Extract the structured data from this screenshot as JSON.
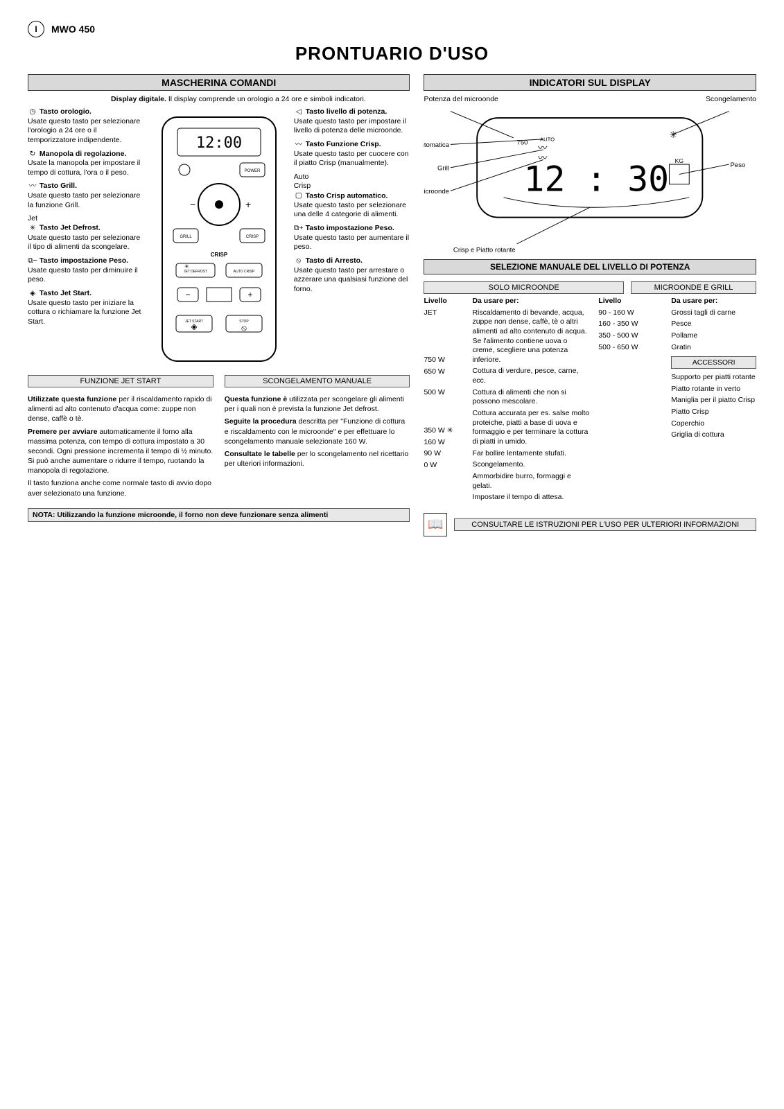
{
  "header": {
    "lang_code": "I",
    "model": "MWO 450",
    "title": "PRONTUARIO D'USO"
  },
  "left": {
    "section_title": "MASCHERINA COMANDI",
    "intro_bold": "Display digitale.",
    "intro_text": "Il display comprende un orologio a 24 ore e simboli indicatori.",
    "legend_left": [
      {
        "b": "Tasto orologio.",
        "t": "Usate questo tasto per selezionare l'orologio a 24 ore o il temporizzatore indipendente."
      },
      {
        "b": "Manopola di regolazione.",
        "t": "Usate la manopola per impostare il tempo di cottura, l'ora o il peso."
      },
      {
        "b": "Tasto Grill.",
        "t": "Usate questo tasto per selezionare la funzione Grill."
      },
      {
        "b": "Tasto Jet Defrost.",
        "t": "Usate questo tasto per selezionare il tipo di alimenti da scongelare."
      },
      {
        "b": "Tasto impostazione Peso.",
        "t": "Usate questo tasto per diminuire il peso."
      },
      {
        "b": "Tasto Jet Start.",
        "t": "Usate questo tasto per iniziare la cottura o richiamare la funzione Jet Start."
      }
    ],
    "legend_right": [
      {
        "b": "Tasto livello di potenza.",
        "t": "Usate questo tasto per impostare il livello di potenza delle microonde."
      },
      {
        "b": "Tasto Funzione Crisp.",
        "t": "Usate questo tasto per cuocere con il piatto Crisp (manualmente)."
      },
      {
        "b": "Tasto Crisp automatico.",
        "t": "Usate questo tasto per selezionare una delle 4 categorie di alimenti."
      },
      {
        "b": "Tasto impostazione Peso.",
        "t": "Usate questo tasto per aumentare il peso."
      },
      {
        "b": "Tasto di Arresto.",
        "t": "Usate questo tasto per arrestare o azzerare una qualsiasi funzione del forno."
      }
    ],
    "icons_left": [
      "◷",
      "↻",
      "〰",
      "Jet ✳",
      "⧉−",
      "◈"
    ],
    "icons_right": [
      "◁",
      "〰",
      "Auto Crisp ▢",
      "⧉+",
      "⦸"
    ],
    "panel_labels": {
      "power": "POWER",
      "crisp": "CRISP",
      "grill": "GRILL",
      "autocrisp": "AUTO CRISP",
      "jetdefrost": "JET DEFROST",
      "jetstart": "JET START",
      "stop": "STOP"
    },
    "jet_bar": "FUNZIONE JET START",
    "defrost_bar": "SCONGELAMENTO MANUALE",
    "jet_left": [
      "Utilizzate questa funzione per il riscaldamento rapido di alimenti ad alto contenuto d'acqua come: zuppe non dense, caffè o tè.",
      "Premere per avviare automaticamente il forno alla massima potenza, con tempo di cottura impostato a 30 secondi. Ogni pressione incrementa il tempo di ½ minuto. Si può anche aumentare o ridurre il tempo, ruotando la manopola di regolazione.",
      "Il tasto funziona anche come normale tasto di avvio dopo aver selezionato una funzione."
    ],
    "jet_right": [
      "Questa funzione è utilizzata per scongelare gli alimenti per i quali non è prevista la funzione Jet defrost.",
      "Seguite la procedura descritta per \"Funzione di cottura e riscaldamento con le microonde\" e per effettuare lo scongelamento manuale selezionate 160 W.",
      "Consultate le tabelle per lo scongelamento nel ricettario per ulteriori informazioni."
    ],
    "note": "NOTA: Utilizzando la funzione microonde, il forno non deve funzionare senza alimenti"
  },
  "right": {
    "section_title": "INDICATORI SUL DISPLAY",
    "labels": {
      "power": "Potenza del microonde",
      "defrost": "Scongelamento",
      "auto": "Automatica",
      "grill": "Grill",
      "micro": "Microonde",
      "weight": "Peso",
      "crispturn": "Crisp e Piatto rotante"
    },
    "display_time": "12 : 30",
    "section_title2": "SELEZIONE MANUALE DEL LIVELLO DI POTENZA",
    "col_a_head": "SOLO MICROONDE",
    "col_b_head": "MICROONDE E GRILL",
    "table_a_head": {
      "c1": "Livello",
      "c2": "Da usare per:"
    },
    "table_b_head": {
      "c1": "Livello",
      "c2": "Da usare per:"
    },
    "rows_a": [
      {
        "w": "JET",
        "t": "Riscaldamento di bevande, acqua, zuppe non dense, caffè, tè o altri alimenti ad alto contenuto di acqua. Se l'alimento contiene uova o creme, scegliere una potenza inferiore."
      },
      {
        "w": "750 W",
        "t": "Cottura di verdure, pesce, carne, ecc."
      },
      {
        "w": "650 W",
        "t": "Cottura di alimenti che non si possono mescolare."
      },
      {
        "w": "500 W",
        "t": "Cottura accurata per es. salse molto proteiche, piatti a base di uova e formaggio e per terminare la cottura di piatti in umido."
      },
      {
        "w": "350 W ✳",
        "t": "Far bollire lentamente stufati."
      },
      {
        "w": "160 W",
        "t": "Scongelamento."
      },
      {
        "w": "90 W",
        "t": "Ammorbidire burro, formaggi e gelati."
      },
      {
        "w": "0 W",
        "t": "Impostare il tempo di attesa."
      }
    ],
    "rows_b": [
      {
        "w": "90 - 160 W",
        "t": "Grossi tagli di carne"
      },
      {
        "w": "160 - 350 W",
        "t": "Pesce"
      },
      {
        "w": "350 - 500 W",
        "t": "Pollame"
      },
      {
        "w": "500 - 650 W",
        "t": "Gratin"
      }
    ],
    "acc_head": "ACCESSORI",
    "accessories": [
      "Supporto per piatti rotante",
      "Piatto rotante in verto",
      "Maniglia per il piatto Crisp",
      "Piatto Crisp",
      "Coperchio",
      "Griglia di cottura"
    ],
    "footer": "CONSULTARE LE ISTRUZIONI PER L'USO PER ULTERIORI INFORMAZIONI"
  }
}
